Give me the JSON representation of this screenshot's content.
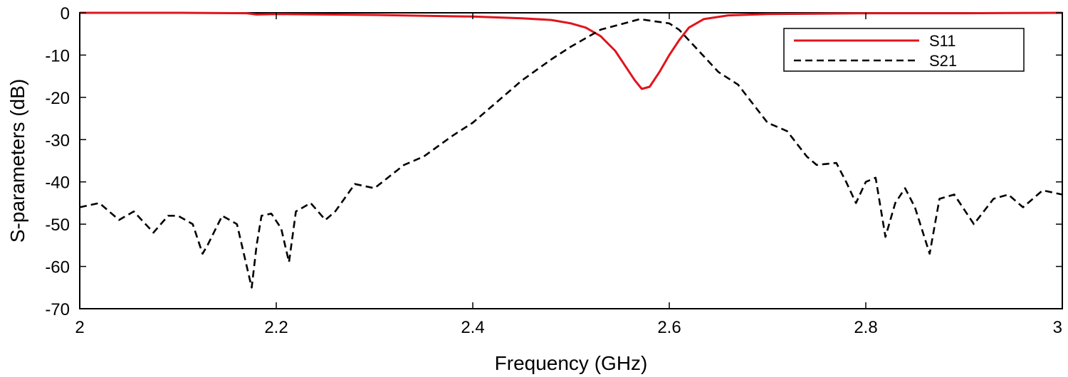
{
  "chart_data": {
    "type": "line",
    "title": "",
    "xlabel": "Frequency (GHz)",
    "ylabel": "S-parameters (dB)",
    "xlim": [
      2,
      3
    ],
    "ylim": [
      -70,
      0
    ],
    "xticks": [
      2,
      2.2,
      2.4,
      2.6,
      2.8,
      3
    ],
    "xtick_labels": [
      "2",
      "2.2",
      "2.4",
      "2.6",
      "2.8",
      "3"
    ],
    "yticks": [
      0,
      -10,
      -20,
      -30,
      -40,
      -50,
      -60,
      -70
    ],
    "ytick_labels": [
      "0",
      "-10",
      "-20",
      "-30",
      "-40",
      "-50",
      "-60",
      "-70"
    ],
    "grid": false,
    "legend_position": "top-right",
    "series": [
      {
        "name": "S11",
        "color": "#e0141c",
        "style": "solid",
        "x": [
          2.0,
          2.1,
          2.17,
          2.18,
          2.2,
          2.3,
          2.4,
          2.45,
          2.48,
          2.5,
          2.515,
          2.53,
          2.545,
          2.555,
          2.565,
          2.572,
          2.58,
          2.59,
          2.6,
          2.61,
          2.62,
          2.635,
          2.66,
          2.7,
          2.8,
          2.9,
          3.0
        ],
        "values": [
          0.0,
          0.0,
          -0.1,
          -0.4,
          -0.3,
          -0.5,
          -0.9,
          -1.3,
          -1.7,
          -2.5,
          -3.5,
          -5.5,
          -9.0,
          -12.5,
          -16.0,
          -18.0,
          -17.5,
          -14.0,
          -10.0,
          -6.5,
          -3.5,
          -1.5,
          -0.6,
          -0.3,
          -0.1,
          -0.1,
          0.0
        ]
      },
      {
        "name": "S21",
        "color": "#000000",
        "style": "dashed",
        "x": [
          2.0,
          2.02,
          2.04,
          2.055,
          2.075,
          2.09,
          2.1,
          2.115,
          2.125,
          2.13,
          2.145,
          2.16,
          2.17,
          2.175,
          2.18,
          2.185,
          2.195,
          2.205,
          2.213,
          2.22,
          2.235,
          2.25,
          2.26,
          2.28,
          2.3,
          2.33,
          2.35,
          2.38,
          2.4,
          2.43,
          2.45,
          2.48,
          2.5,
          2.53,
          2.57,
          2.6,
          2.61,
          2.63,
          2.65,
          2.67,
          2.68,
          2.7,
          2.72,
          2.74,
          2.75,
          2.77,
          2.78,
          2.79,
          2.8,
          2.81,
          2.82,
          2.83,
          2.84,
          2.85,
          2.865,
          2.875,
          2.89,
          2.91,
          2.93,
          2.945,
          2.96,
          2.98,
          3.0
        ],
        "values": [
          -46,
          -45,
          -49,
          -47,
          -52,
          -48,
          -48,
          -50,
          -57,
          -55,
          -48,
          -50,
          -60,
          -65,
          -55,
          -48,
          -47.5,
          -51,
          -59,
          -47,
          -45,
          -49,
          -47,
          -40.5,
          -41.5,
          -36,
          -34,
          -29,
          -26,
          -20,
          -16,
          -11,
          -8,
          -4,
          -1.5,
          -2.5,
          -4,
          -9,
          -14,
          -17,
          -20,
          -26,
          -28,
          -34,
          -36,
          -35.5,
          -40,
          -45,
          -40,
          -39,
          -53,
          -45,
          -41.5,
          -46,
          -57,
          -44,
          -43,
          -50,
          -44,
          -43,
          -46,
          -42,
          -43
        ]
      }
    ]
  }
}
